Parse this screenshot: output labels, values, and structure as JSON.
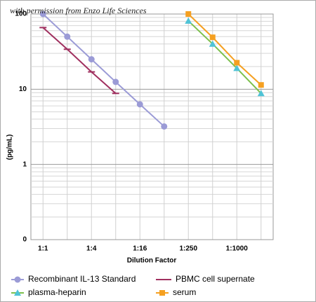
{
  "chart_data": {
    "type": "line",
    "annotation": "with permission from Enzo Life Sciences",
    "xlabel": "Dilution Factor",
    "ylabel": "(pg/mL)",
    "categories": [
      "1:1",
      null,
      "1:4",
      null,
      "1:16",
      null,
      "1:250",
      null,
      "1:1000",
      null
    ],
    "series": [
      {
        "name": "Recombinant IL-13 Standard",
        "color": "#9b9bd6",
        "line_color": "#9b9bd6",
        "marker": "circle",
        "values": [
          100,
          50,
          25,
          12.5,
          6.3,
          3.2,
          null,
          null,
          null,
          null
        ]
      },
      {
        "name": "PBMC cell supernate",
        "color": "#a0305f",
        "line_color": "#a0305f",
        "marker": "dash",
        "values": [
          66,
          34,
          17,
          8.8,
          null,
          null,
          null,
          null,
          null,
          null
        ]
      },
      {
        "name": "plasma-heparin",
        "color": "#4fc3d6",
        "line_color": "#7cc04c",
        "marker": "triangle",
        "values": [
          null,
          null,
          null,
          null,
          null,
          null,
          81,
          40,
          19,
          8.8
        ]
      },
      {
        "name": "serum",
        "color": "#f5a021",
        "line_color": "#f5a021",
        "marker": "square",
        "values": [
          null,
          null,
          null,
          null,
          null,
          null,
          100,
          49,
          22.5,
          11.4
        ]
      }
    ],
    "ylim": [
      0.1,
      100
    ],
    "yticks": [
      {
        "value": 0.1,
        "label": "0"
      },
      1,
      10,
      100
    ],
    "ylog": true,
    "grid": true,
    "legend": "bottom"
  }
}
